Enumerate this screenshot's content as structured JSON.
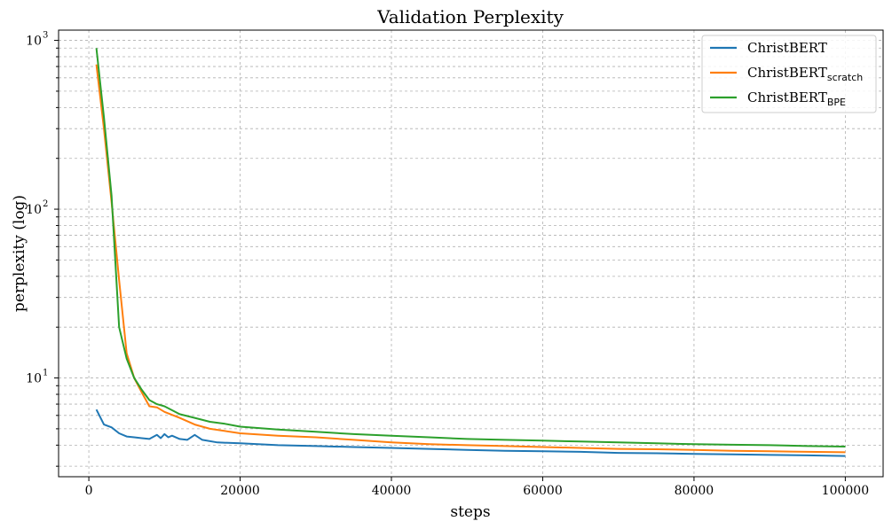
{
  "chart_data": {
    "type": "line",
    "title": "Validation Perplexity",
    "xlabel": "steps",
    "ylabel": "perplexity (log)",
    "yscale": "log",
    "xlim": [
      -4000,
      105000
    ],
    "ylim": [
      2.6,
      1150
    ],
    "x_ticks": [
      {
        "value": 0,
        "label": "0"
      },
      {
        "value": 20000,
        "label": "20000"
      },
      {
        "value": 40000,
        "label": "40000"
      },
      {
        "value": 60000,
        "label": "60000"
      },
      {
        "value": 80000,
        "label": "80000"
      },
      {
        "value": 100000,
        "label": "100000"
      }
    ],
    "y_ticks": [
      {
        "value": 10,
        "base": "10",
        "exp": "1"
      },
      {
        "value": 100,
        "base": "10",
        "exp": "2"
      },
      {
        "value": 1000,
        "base": "10",
        "exp": "3"
      }
    ],
    "grid": true,
    "legend_position": "top-right",
    "series": [
      {
        "name": "ChristBERT",
        "name_sub": "",
        "color": "#1f77b4",
        "points": [
          [
            1000,
            6.5
          ],
          [
            2000,
            5.3
          ],
          [
            3000,
            5.1
          ],
          [
            4000,
            4.7
          ],
          [
            5000,
            4.5
          ],
          [
            6000,
            4.45
          ],
          [
            7000,
            4.4
          ],
          [
            8000,
            4.35
          ],
          [
            9000,
            4.6
          ],
          [
            9500,
            4.4
          ],
          [
            10000,
            4.65
          ],
          [
            10500,
            4.45
          ],
          [
            11000,
            4.55
          ],
          [
            12000,
            4.35
          ],
          [
            13000,
            4.3
          ],
          [
            14000,
            4.6
          ],
          [
            15000,
            4.3
          ],
          [
            17000,
            4.15
          ],
          [
            20000,
            4.1
          ],
          [
            25000,
            4.0
          ],
          [
            30000,
            3.95
          ],
          [
            35000,
            3.9
          ],
          [
            40000,
            3.85
          ],
          [
            45000,
            3.8
          ],
          [
            50000,
            3.75
          ],
          [
            55000,
            3.7
          ],
          [
            60000,
            3.68
          ],
          [
            65000,
            3.65
          ],
          [
            70000,
            3.6
          ],
          [
            75000,
            3.58
          ],
          [
            80000,
            3.55
          ],
          [
            85000,
            3.53
          ],
          [
            90000,
            3.5
          ],
          [
            95000,
            3.48
          ],
          [
            100000,
            3.45
          ]
        ]
      },
      {
        "name": "ChristBERT",
        "name_sub": "scratch",
        "color": "#ff7f0e",
        "points": [
          [
            1000,
            720
          ],
          [
            2000,
            300
          ],
          [
            3000,
            110
          ],
          [
            4000,
            38
          ],
          [
            5000,
            14
          ],
          [
            6000,
            10
          ],
          [
            7000,
            8.2
          ],
          [
            8000,
            6.8
          ],
          [
            9000,
            6.7
          ],
          [
            10000,
            6.3
          ],
          [
            12000,
            5.8
          ],
          [
            14000,
            5.3
          ],
          [
            16000,
            5.0
          ],
          [
            18000,
            4.85
          ],
          [
            20000,
            4.7
          ],
          [
            25000,
            4.55
          ],
          [
            30000,
            4.45
          ],
          [
            35000,
            4.3
          ],
          [
            40000,
            4.15
          ],
          [
            45000,
            4.05
          ],
          [
            50000,
            4.0
          ],
          [
            55000,
            3.95
          ],
          [
            60000,
            3.9
          ],
          [
            65000,
            3.85
          ],
          [
            70000,
            3.8
          ],
          [
            75000,
            3.78
          ],
          [
            80000,
            3.75
          ],
          [
            85000,
            3.7
          ],
          [
            90000,
            3.68
          ],
          [
            95000,
            3.65
          ],
          [
            100000,
            3.63
          ]
        ]
      },
      {
        "name": "ChristBERT",
        "name_sub": "BPE",
        "color": "#2ca02c",
        "points": [
          [
            1000,
            900
          ],
          [
            2000,
            350
          ],
          [
            3000,
            120
          ],
          [
            4000,
            20
          ],
          [
            5000,
            13
          ],
          [
            6000,
            10
          ],
          [
            7000,
            8.5
          ],
          [
            8000,
            7.4
          ],
          [
            9000,
            7.0
          ],
          [
            10000,
            6.8
          ],
          [
            12000,
            6.1
          ],
          [
            14000,
            5.8
          ],
          [
            16000,
            5.5
          ],
          [
            18000,
            5.35
          ],
          [
            20000,
            5.15
          ],
          [
            25000,
            4.95
          ],
          [
            30000,
            4.8
          ],
          [
            35000,
            4.65
          ],
          [
            40000,
            4.55
          ],
          [
            45000,
            4.45
          ],
          [
            50000,
            4.35
          ],
          [
            55000,
            4.3
          ],
          [
            60000,
            4.25
          ],
          [
            65000,
            4.2
          ],
          [
            70000,
            4.15
          ],
          [
            75000,
            4.1
          ],
          [
            80000,
            4.05
          ],
          [
            85000,
            4.02
          ],
          [
            90000,
            4.0
          ],
          [
            95000,
            3.95
          ],
          [
            100000,
            3.92
          ]
        ]
      }
    ]
  }
}
